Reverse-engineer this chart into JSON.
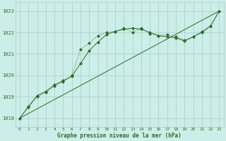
{
  "title": "Graphe pression niveau de la mer (hPa)",
  "background_color": "#cceee8",
  "grid_color": "#aaccc8",
  "line_color": "#2d6b2d",
  "xlim": [
    -0.5,
    23.5
  ],
  "ylim": [
    1017.6,
    1023.4
  ],
  "xticks": [
    0,
    1,
    2,
    3,
    4,
    5,
    6,
    7,
    8,
    9,
    10,
    11,
    12,
    13,
    14,
    15,
    16,
    17,
    18,
    19,
    20,
    21,
    22,
    23
  ],
  "yticks": [
    1018,
    1019,
    1020,
    1021,
    1022,
    1023
  ],
  "series1_x": [
    0,
    1,
    2,
    3,
    4,
    5,
    6,
    7,
    8,
    9,
    10,
    11,
    12,
    13,
    14,
    15,
    16,
    17,
    18,
    19,
    20,
    21,
    22,
    23
  ],
  "series1_y": [
    1018.0,
    1018.5,
    1019.0,
    1019.2,
    1019.5,
    1019.7,
    1020.0,
    1021.2,
    1021.5,
    1021.85,
    1022.0,
    1022.05,
    1022.2,
    1022.0,
    1022.2,
    1021.95,
    1021.85,
    1021.9,
    1021.8,
    1021.65,
    1021.8,
    1022.05,
    1022.3,
    1023.0
  ],
  "series1_style": "dotted",
  "series2_x": [
    0,
    1,
    2,
    3,
    4,
    5,
    6,
    7,
    8,
    9,
    10,
    11,
    12,
    13,
    14,
    15,
    16,
    17,
    18,
    19,
    20,
    21,
    22,
    23
  ],
  "series2_y": [
    1018.0,
    1018.55,
    1019.05,
    1019.25,
    1019.55,
    1019.75,
    1019.95,
    1020.55,
    1021.15,
    1021.55,
    1021.9,
    1022.05,
    1022.15,
    1022.2,
    1022.15,
    1022.0,
    1021.85,
    1021.8,
    1021.75,
    1021.6,
    1021.8,
    1022.0,
    1022.3,
    1023.0
  ],
  "series2_style": "solid",
  "series3_x": [
    0,
    23
  ],
  "series3_y": [
    1018.0,
    1023.0
  ],
  "series3_style": "solid"
}
